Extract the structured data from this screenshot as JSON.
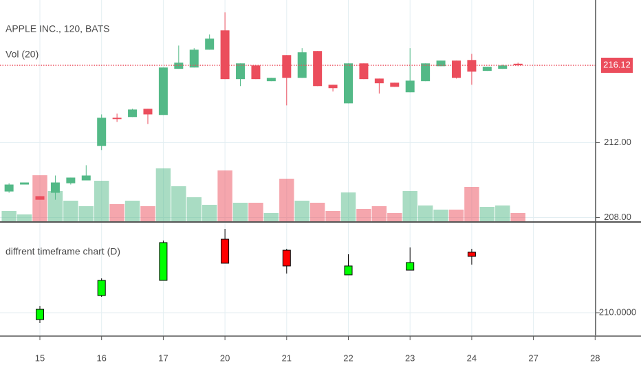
{
  "chart_data": [
    {
      "type": "candlestick",
      "title": "APPLE INC., 120, BATS",
      "volume_label": "Vol (20)",
      "open": [
        209.39,
        209.76,
        209.14,
        209.32,
        209.83,
        209.98,
        211.82,
        213.32,
        213.36,
        213.8,
        213.47,
        215.93,
        216.0,
        216.95,
        217.98,
        215.38,
        216.11,
        215.27,
        216.66,
        215.45,
        216.88,
        215.08,
        214.09,
        216.22,
        215.41,
        215.19,
        214.68,
        215.27,
        216.07,
        216.37,
        216.4,
        215.82,
        215.93,
        216.2
      ],
      "high": [
        209.83,
        209.87,
        209.14,
        210.24,
        210.13,
        210.79,
        213.5,
        213.54,
        213.8,
        213.8,
        216.0,
        217.17,
        217.03,
        217.76,
        218.94,
        216.22,
        216.11,
        215.45,
        216.66,
        217.03,
        216.88,
        215.08,
        216.22,
        216.22,
        215.41,
        215.19,
        217.03,
        216.22,
        216.37,
        216.37,
        216.73,
        216.04,
        216.15,
        216.26
      ],
      "low": [
        209.32,
        209.76,
        208.95,
        208.95,
        209.76,
        209.98,
        211.6,
        213.1,
        213.36,
        212.99,
        213.47,
        215.93,
        216.0,
        216.95,
        215.38,
        215.01,
        215.38,
        215.27,
        213.98,
        215.45,
        215.01,
        214.72,
        214.09,
        215.38,
        214.61,
        214.97,
        214.68,
        215.27,
        216.07,
        215.41,
        215.08,
        215.82,
        215.93,
        216.07
      ],
      "close": [
        209.76,
        209.87,
        208.95,
        209.87,
        210.13,
        210.24,
        213.32,
        213.25,
        213.76,
        213.5,
        216.0,
        216.26,
        216.95,
        217.54,
        215.38,
        216.22,
        215.38,
        215.45,
        215.45,
        216.81,
        215.01,
        214.9,
        216.22,
        215.38,
        215.16,
        214.97,
        215.3,
        216.22,
        216.37,
        215.45,
        215.78,
        216.04,
        216.11,
        216.12
      ],
      "volume": [
        15,
        10,
        67,
        44,
        30,
        22,
        59,
        25,
        30,
        22,
        77,
        51,
        35,
        24,
        74,
        27,
        27,
        12,
        62,
        30,
        27,
        15,
        42,
        18,
        22,
        12,
        44,
        23,
        17,
        17,
        50,
        21,
        23,
        12
      ],
      "up_color": "#53b987",
      "down_color": "#eb4d5c",
      "last_price": 216.12,
      "ylim": [
        207.8,
        219.6
      ],
      "yticks": [
        {
          "value": 212,
          "label": "212.00"
        },
        {
          "value": 208,
          "label": "208.00"
        }
      ]
    },
    {
      "type": "candlestick",
      "title": "diffrent timeframe chart (D)",
      "x": [
        15,
        16,
        17,
        20,
        21,
        22,
        23,
        24
      ],
      "open": [
        209.28,
        211.81,
        213.41,
        217.75,
        216.59,
        213.99,
        214.49,
        216.38
      ],
      "high": [
        210.72,
        213.62,
        217.61,
        218.84,
        216.74,
        216.16,
        216.88,
        216.74
      ],
      "low": [
        208.91,
        211.67,
        213.41,
        215.22,
        214.13,
        213.99,
        214.49,
        215.07
      ],
      "close": [
        210.36,
        213.41,
        217.39,
        215.22,
        214.93,
        214.93,
        215.29,
        215.94
      ],
      "up_color": "#00ff00",
      "down_color": "#ff0000",
      "ylim": [
        207.61,
        219.42
      ],
      "yticks": [
        {
          "value": 210,
          "label": "210.0000"
        }
      ],
      "xticks": [
        15,
        16,
        17,
        20,
        21,
        22,
        23,
        24,
        27,
        28
      ]
    }
  ]
}
